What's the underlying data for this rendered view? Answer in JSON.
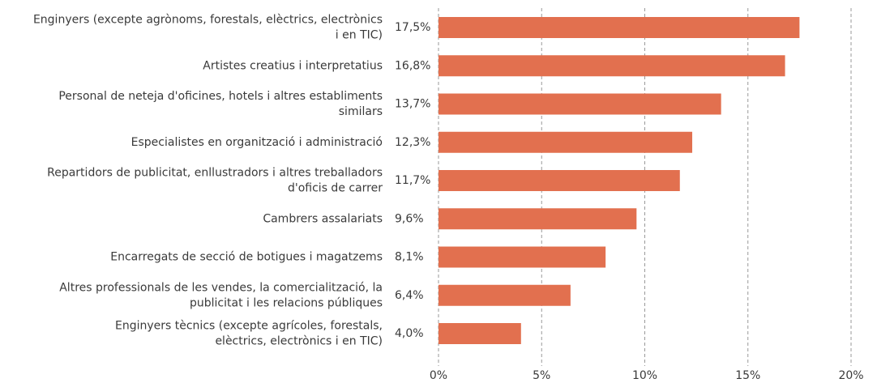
{
  "chart_data": {
    "type": "barh",
    "categories": [
      "Enginyers (excepte agrònoms, forestals, elèctrics, electrònics\ni en TIC)",
      "Artistes creatius i interpretatius",
      "Personal de neteja d'oficines, hotels i altres establiments\nsimilars",
      "Especialistes en organització i administració",
      "Repartidors de publicitat, enllustradors i altres treballadors\nd'oficis de carrer",
      "Cambrers assalariats",
      "Encarregats de secció de botigues i magatzems",
      "Altres professionals de les vendes, la comercialització, la\npublicitat i les relacions públiques",
      "Enginyers tècnics (excepte agrícoles, forestals,\nelèctrics, electrònics i en TIC)"
    ],
    "values": [
      17.5,
      16.8,
      13.7,
      12.3,
      11.7,
      9.6,
      8.1,
      6.4,
      4.0
    ],
    "value_labels": [
      "17,5%",
      "16,8%",
      "13,7%",
      "12,3%",
      "11,7%",
      "9,6%",
      "8,1%",
      "6,4%",
      "4,0%"
    ],
    "color": "#e2704f",
    "xlim": [
      0,
      20
    ],
    "xticks": [
      {
        "value": 0,
        "label": "0%"
      },
      {
        "value": 5,
        "label": "5%"
      },
      {
        "value": 10,
        "label": "10%"
      },
      {
        "value": 15,
        "label": "15%"
      },
      {
        "value": 20,
        "label": "20%"
      }
    ],
    "grid": true
  }
}
